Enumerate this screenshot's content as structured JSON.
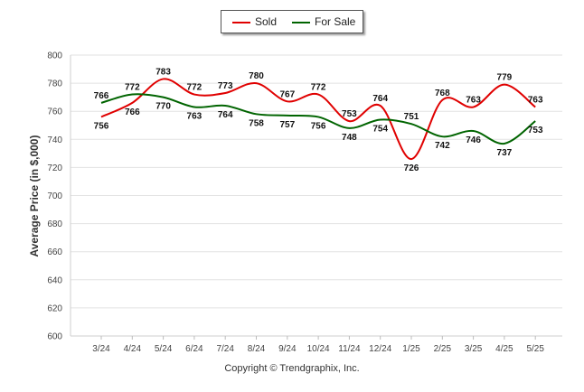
{
  "chart_data": {
    "type": "line",
    "categories": [
      "3/24",
      "4/24",
      "5/24",
      "6/24",
      "7/24",
      "8/24",
      "9/24",
      "10/24",
      "11/24",
      "12/24",
      "1/25",
      "2/25",
      "3/25",
      "4/25",
      "5/25"
    ],
    "series": [
      {
        "name": "Sold",
        "color": "#e00000",
        "values": [
          756,
          766,
          783,
          772,
          773,
          780,
          767,
          772,
          753,
          764,
          726,
          768,
          763,
          779,
          763
        ]
      },
      {
        "name": "For Sale",
        "color": "#006400",
        "values": [
          766,
          772,
          770,
          763,
          764,
          758,
          757,
          756,
          748,
          754,
          751,
          742,
          746,
          737,
          753
        ]
      }
    ],
    "data_labels": {
      "Sold": [
        "756",
        "766",
        "783",
        "772",
        "773",
        "780",
        "767",
        "772",
        "753",
        "764",
        "726",
        "768",
        "763",
        "779",
        "763"
      ],
      "For Sale": [
        "766",
        "772",
        "770",
        "763",
        "764",
        "758",
        "757",
        "756",
        "748",
        "754",
        "751",
        "742",
        "746",
        "737",
        "753"
      ]
    },
    "ylabel": "Average Price (in $,000)",
    "ylim": [
      600,
      800
    ],
    "yticks": [
      600,
      620,
      640,
      660,
      680,
      700,
      720,
      740,
      760,
      780,
      800
    ],
    "grid": true,
    "legend_position": "top-center"
  },
  "footer": {
    "copyright": "Copyright © Trendgraphix, Inc."
  }
}
